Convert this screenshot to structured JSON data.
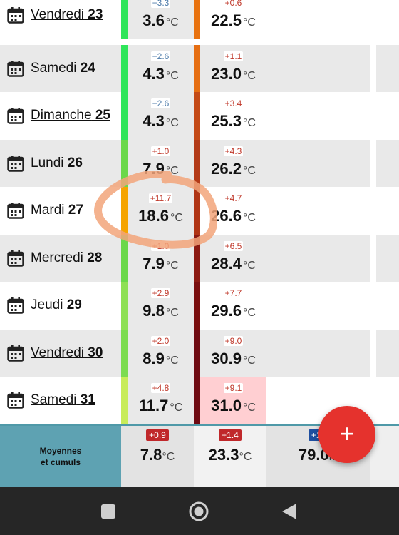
{
  "rows": [
    {
      "day": "Vendredi",
      "num": "23",
      "c1": {
        "diff": "−3.3",
        "val": "3.6",
        "sign": "neg"
      },
      "c2": {
        "diff": "+0.6",
        "val": "22.5",
        "sign": "pos"
      },
      "strip1": "#2ee55a",
      "strip2": "#e8720f",
      "c2bg": "#ffffff",
      "partial": true
    },
    {
      "day": "Samedi",
      "num": "24",
      "c1": {
        "diff": "−2.6",
        "val": "4.3",
        "sign": "neg"
      },
      "c2": {
        "diff": "+1.1",
        "val": "23.0",
        "sign": "pos"
      },
      "strip1": "#2ee55a",
      "strip2": "#e66e12",
      "c2bg": "#ffffff"
    },
    {
      "day": "Dimanche",
      "num": "25",
      "c1": {
        "diff": "−2.6",
        "val": "4.3",
        "sign": "neg"
      },
      "c2": {
        "diff": "+3.4",
        "val": "25.3",
        "sign": "pos"
      },
      "strip1": "#2ee55a",
      "strip2": "#c44a16",
      "c2bg": "#ffffff"
    },
    {
      "day": "Lundi",
      "num": "26",
      "c1": {
        "diff": "+1.0",
        "val": "7.9",
        "sign": "pos"
      },
      "c2": {
        "diff": "+4.3",
        "val": "26.2",
        "sign": "pos"
      },
      "strip1": "#6ad84a",
      "strip2": "#b33a18",
      "c2bg": "#ffffff"
    },
    {
      "day": "Mardi",
      "num": "27",
      "c1": {
        "diff": "+11.7",
        "val": "18.6",
        "sign": "pos"
      },
      "c2": {
        "diff": "+4.7",
        "val": "26.6",
        "sign": "pos"
      },
      "strip1": "#f5a400",
      "strip2": "#b03515",
      "c2bg": "#ffffff"
    },
    {
      "day": "Mercredi",
      "num": "28",
      "c1": {
        "diff": "+1.0",
        "val": "7.9",
        "sign": "pos"
      },
      "c2": {
        "diff": "+6.5",
        "val": "28.4",
        "sign": "pos"
      },
      "strip1": "#6ad84a",
      "strip2": "#8c1a12",
      "c2bg": "#ffffff"
    },
    {
      "day": "Jeudi",
      "num": "29",
      "c1": {
        "diff": "+2.9",
        "val": "9.8",
        "sign": "pos"
      },
      "c2": {
        "diff": "+7.7",
        "val": "29.6",
        "sign": "pos"
      },
      "strip1": "#8ee055",
      "strip2": "#7a0e0e",
      "c2bg": "#ffffff"
    },
    {
      "day": "Vendredi",
      "num": "30",
      "c1": {
        "diff": "+2.0",
        "val": "8.9",
        "sign": "pos"
      },
      "c2": {
        "diff": "+9.0",
        "val": "30.9",
        "sign": "pos"
      },
      "strip1": "#7cdc50",
      "strip2": "#6e0a12",
      "c2bg": "#ffffff"
    },
    {
      "day": "Samedi",
      "num": "31",
      "c1": {
        "diff": "+4.8",
        "val": "11.7",
        "sign": "pos"
      },
      "c2": {
        "diff": "+9.1",
        "val": "31.0",
        "sign": "pos"
      },
      "strip1": "#c8ec5a",
      "strip2": "#6e0a12",
      "c2bg": "#ffcfd2"
    }
  ],
  "unit": "°C",
  "footer": {
    "label_line1": "Moyennes",
    "label_line2": "et cumuls",
    "c1": {
      "badge": "+0.9",
      "val": "7.8",
      "unit": "°C"
    },
    "c2": {
      "badge": "+1.4",
      "val": "23.3",
      "unit": "°C"
    },
    "c3": {
      "badge": "+15",
      "val": "79.0",
      "unit": "m"
    }
  },
  "fab_label": "+",
  "colors": {
    "accent_teal": "#5ea2b2",
    "fab_red": "#e5322d",
    "annotation_orange": "#f2a47a"
  }
}
